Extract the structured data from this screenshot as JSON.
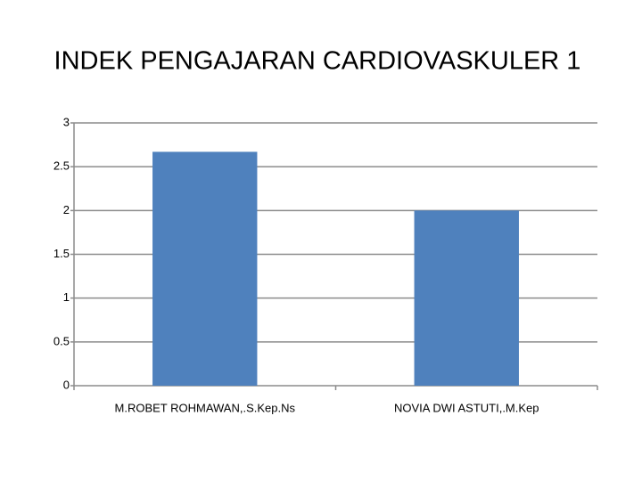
{
  "chart_data": {
    "type": "bar",
    "title": "INDEK PENGAJARAN CARDIOVASKULER 1",
    "categories": [
      "M.ROBET ROHMAWAN,.S.Kep.Ns",
      "NOVIA DWI ASTUTI,.M.Kep"
    ],
    "values": [
      2.67,
      2.0
    ],
    "color": "#4f81bd",
    "ylim": [
      0,
      3
    ],
    "yticks": [
      0,
      0.5,
      1,
      1.5,
      2,
      2.5,
      3
    ],
    "grid": true
  }
}
